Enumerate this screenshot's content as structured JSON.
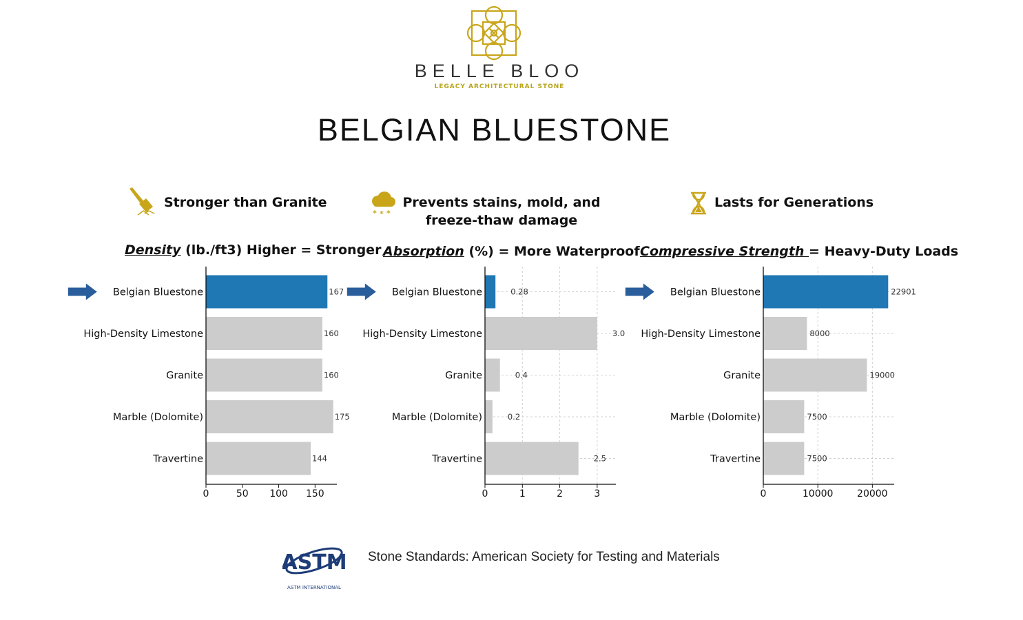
{
  "header": {
    "brand": "BELLE BLOO",
    "tagline": "LEGACY ARCHITECTURAL STONE",
    "title": "BELGIAN BLUESTONE"
  },
  "features": [
    {
      "icon": "hammer-icon",
      "text": "Stronger than Granite"
    },
    {
      "icon": "snow-cloud-icon",
      "text_line1": "Prevents stains, mold, and",
      "text_line2": "freeze-thaw damage"
    },
    {
      "icon": "hourglass-icon",
      "text": "Lasts for Generations"
    }
  ],
  "subtitles": [
    {
      "key": "Density",
      "rest": " (lb./ft3) Higher = Stronger"
    },
    {
      "key": "Absorption",
      "rest": " (%) = More Waterproof"
    },
    {
      "key": "Compressive Strength ",
      "rest": "= Heavy-Duty Loads"
    }
  ],
  "colors": {
    "highlight": "#1f77b4",
    "bar": "#cccccc",
    "arrow": "#2a5d9c",
    "gold": "#c9a51a"
  },
  "chart_data": [
    {
      "type": "bar",
      "orientation": "horizontal",
      "categories": [
        "Belgian Bluestone",
        "High-Density Limestone",
        "Granite",
        "Marble (Dolomite)",
        "Travertine"
      ],
      "values": [
        167,
        160,
        160,
        175,
        144
      ],
      "value_labels": [
        "167",
        "160",
        "160",
        "175",
        "144"
      ],
      "highlight_index": 0,
      "xlim": [
        0,
        180
      ],
      "xticks": [
        0,
        50,
        100,
        150
      ],
      "grid": false
    },
    {
      "type": "bar",
      "orientation": "horizontal",
      "categories": [
        "Belgian Bluestone",
        "High-Density Limestone",
        "Granite",
        "Marble (Dolomite)",
        "Travertine"
      ],
      "values": [
        0.28,
        3.0,
        0.4,
        0.2,
        2.5
      ],
      "value_labels": [
        "0.28",
        "3.0",
        "0.4",
        "0.2",
        "2.5"
      ],
      "highlight_index": 0,
      "xlim": [
        0,
        3.5
      ],
      "xticks": [
        0,
        1,
        2,
        3
      ],
      "grid": true
    },
    {
      "type": "bar",
      "orientation": "horizontal",
      "categories": [
        "Belgian Bluestone",
        "High-Density Limestone",
        "Granite",
        "Marble (Dolomite)",
        "Travertine"
      ],
      "values": [
        22901,
        8000,
        19000,
        7500,
        7500
      ],
      "value_labels": [
        "22901",
        "8000",
        "19000",
        "7500",
        "7500"
      ],
      "highlight_index": 0,
      "xlim": [
        0,
        24000
      ],
      "xticks": [
        0,
        10000,
        20000
      ],
      "grid": true
    }
  ],
  "footer": {
    "astm_logo_text": "ASTM",
    "astm_logo_caption": "ASTM INTERNATIONAL",
    "source": "Stone Standards: American Society for Testing and Materials"
  }
}
